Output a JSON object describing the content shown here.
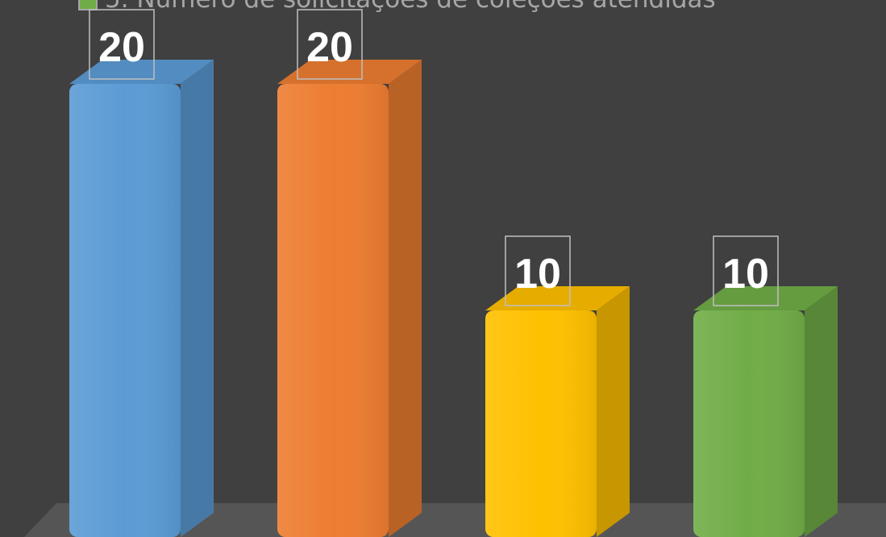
{
  "chart_data": {
    "type": "bar",
    "categories": [
      "",
      "",
      "",
      ""
    ],
    "values": [
      20,
      20,
      10,
      10
    ],
    "colors": [
      "#5b9bd5",
      "#ed7d31",
      "#ffc000",
      "#70ad47"
    ],
    "data_labels": [
      "20",
      "20",
      "10",
      "10"
    ],
    "legend": [
      {
        "label": "5. Número de solicitações de coleções atendidas",
        "color": "#70ad47"
      }
    ],
    "legend_placement": "top",
    "three_d": true,
    "grid": false,
    "title": "",
    "xlabel": "",
    "ylabel": ""
  }
}
